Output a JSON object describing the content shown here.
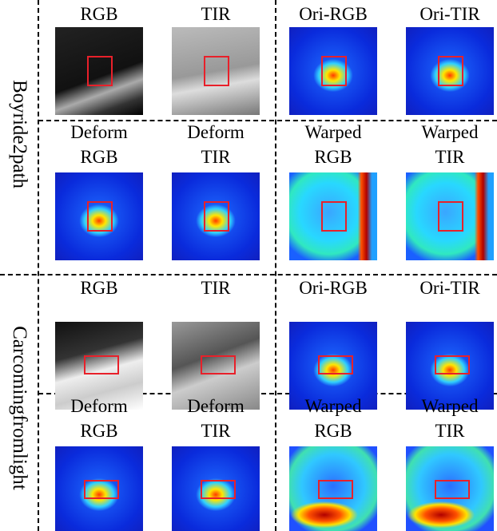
{
  "groups": [
    {
      "name": "Boyride2path",
      "rows": [
        [
          "RGB",
          "TIR",
          "Ori-RGB",
          "Ori-TIR"
        ],
        [
          "Deform\nRGB",
          "Deform\nTIR",
          "Warped\nRGB",
          "Warped\nTIR"
        ]
      ]
    },
    {
      "name": "Carcomingfromlight",
      "rows": [
        [
          "RGB",
          "TIR",
          "Ori-RGB",
          "Ori-TIR"
        ],
        [
          "Deform\nRGB",
          "Deform\nTIR",
          "Warped\nRGB",
          "Warped\nTIR"
        ]
      ]
    }
  ]
}
